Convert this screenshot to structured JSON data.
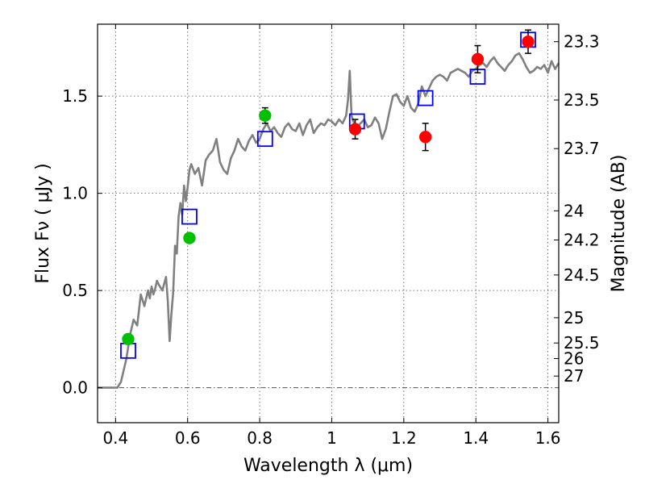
{
  "chart_data": {
    "type": "scatter",
    "title": "",
    "xlabel": "Wavelength  λ (μm)",
    "ylabel": "Flux  Fν  ( μJy )",
    "ylabel_right": "Magnitude (AB)",
    "xlim": [
      0.35,
      1.63
    ],
    "ylim": [
      -0.18,
      1.87
    ],
    "grid": true,
    "x_ticks": [
      {
        "value": 0.4,
        "label": "0.4"
      },
      {
        "value": 0.6,
        "label": "0.6"
      },
      {
        "value": 0.8,
        "label": "0.8"
      },
      {
        "value": 1.0,
        "label": "1"
      },
      {
        "value": 1.2,
        "label": "1.2"
      },
      {
        "value": 1.4,
        "label": "1.4"
      },
      {
        "value": 1.6,
        "label": "1.6"
      }
    ],
    "y_ticks": [
      {
        "value": 0.0,
        "label": "0.0"
      },
      {
        "value": 0.5,
        "label": "0.5"
      },
      {
        "value": 1.0,
        "label": "1.0"
      },
      {
        "value": 1.5,
        "label": "1.5"
      }
    ],
    "magnitude_ticks": [
      {
        "value": 1.78,
        "label": "23.3"
      },
      {
        "value": 1.48,
        "label": "23.5"
      },
      {
        "value": 1.23,
        "label": "23.7"
      },
      {
        "value": 0.91,
        "label": "24"
      },
      {
        "value": 0.76,
        "label": "24.2"
      },
      {
        "value": 0.58,
        "label": "24.5"
      },
      {
        "value": 0.36,
        "label": "25"
      },
      {
        "value": 0.23,
        "label": "25.5"
      },
      {
        "value": 0.15,
        "label": "26"
      },
      {
        "value": 0.06,
        "label": "27"
      }
    ],
    "series": [
      {
        "name": "model SED",
        "kind": "line",
        "color": "#808080",
        "x": [
          0.35,
          0.405,
          0.415,
          0.43,
          0.44,
          0.45,
          0.46,
          0.47,
          0.48,
          0.49,
          0.495,
          0.5,
          0.505,
          0.51,
          0.515,
          0.52,
          0.53,
          0.54,
          0.545,
          0.55,
          0.555,
          0.56,
          0.565,
          0.57,
          0.575,
          0.58,
          0.585,
          0.59,
          0.595,
          0.6,
          0.605,
          0.61,
          0.62,
          0.63,
          0.64,
          0.65,
          0.66,
          0.67,
          0.68,
          0.69,
          0.7,
          0.71,
          0.72,
          0.73,
          0.74,
          0.75,
          0.76,
          0.77,
          0.78,
          0.79,
          0.8,
          0.81,
          0.82,
          0.83,
          0.84,
          0.85,
          0.86,
          0.87,
          0.88,
          0.89,
          0.9,
          0.91,
          0.92,
          0.93,
          0.94,
          0.95,
          0.96,
          0.97,
          0.98,
          0.99,
          1.0,
          1.01,
          1.02,
          1.03,
          1.04,
          1.045,
          1.05,
          1.055,
          1.06,
          1.07,
          1.08,
          1.09,
          1.1,
          1.11,
          1.12,
          1.13,
          1.14,
          1.15,
          1.16,
          1.17,
          1.18,
          1.19,
          1.2,
          1.21,
          1.22,
          1.23,
          1.24,
          1.25,
          1.26,
          1.27,
          1.28,
          1.29,
          1.3,
          1.31,
          1.32,
          1.33,
          1.34,
          1.35,
          1.36,
          1.37,
          1.38,
          1.39,
          1.4,
          1.41,
          1.42,
          1.43,
          1.44,
          1.45,
          1.46,
          1.47,
          1.48,
          1.49,
          1.5,
          1.51,
          1.52,
          1.53,
          1.54,
          1.55,
          1.56,
          1.57,
          1.58,
          1.59,
          1.6,
          1.61,
          1.62,
          1.63
        ],
        "y": [
          0.0,
          0.0,
          0.03,
          0.15,
          0.27,
          0.35,
          0.32,
          0.48,
          0.42,
          0.5,
          0.46,
          0.52,
          0.48,
          0.51,
          0.55,
          0.53,
          0.5,
          0.57,
          0.45,
          0.24,
          0.38,
          0.49,
          0.73,
          0.69,
          0.88,
          0.95,
          0.89,
          1.04,
          0.96,
          1.03,
          1.12,
          1.15,
          1.1,
          1.13,
          1.04,
          1.17,
          1.2,
          1.22,
          1.28,
          1.16,
          1.12,
          1.1,
          1.18,
          1.22,
          1.28,
          1.24,
          1.22,
          1.27,
          1.3,
          1.26,
          1.28,
          1.33,
          1.36,
          1.32,
          1.34,
          1.31,
          1.29,
          1.34,
          1.36,
          1.33,
          1.32,
          1.36,
          1.3,
          1.35,
          1.38,
          1.31,
          1.34,
          1.36,
          1.35,
          1.38,
          1.37,
          1.35,
          1.38,
          1.36,
          1.4,
          1.48,
          1.63,
          1.4,
          1.37,
          1.34,
          1.36,
          1.38,
          1.34,
          1.35,
          1.39,
          1.36,
          1.28,
          1.33,
          1.42,
          1.5,
          1.51,
          1.47,
          1.45,
          1.5,
          1.44,
          1.42,
          1.46,
          1.55,
          1.5,
          1.54,
          1.58,
          1.6,
          1.61,
          1.6,
          1.58,
          1.62,
          1.63,
          1.64,
          1.63,
          1.62,
          1.6,
          1.63,
          1.64,
          1.66,
          1.67,
          1.65,
          1.68,
          1.7,
          1.67,
          1.65,
          1.63,
          1.66,
          1.68,
          1.71,
          1.72,
          1.69,
          1.65,
          1.62,
          1.63,
          1.65,
          1.64,
          1.66,
          1.62,
          1.68,
          1.64,
          1.67
        ]
      },
      {
        "name": "green photometry",
        "kind": "points",
        "marker": "circle",
        "color": "#00c000",
        "points": [
          {
            "x": 0.435,
            "y": 0.25,
            "err": 0.02
          },
          {
            "x": 0.605,
            "y": 0.77,
            "err": 0.02
          },
          {
            "x": 0.815,
            "y": 1.4,
            "err": 0.04
          }
        ]
      },
      {
        "name": "red photometry",
        "kind": "points",
        "marker": "circle",
        "color": "#ff0000",
        "points": [
          {
            "x": 1.065,
            "y": 1.33,
            "err": 0.05
          },
          {
            "x": 1.26,
            "y": 1.29,
            "err": 0.07
          },
          {
            "x": 1.405,
            "y": 1.69,
            "err": 0.07
          },
          {
            "x": 1.545,
            "y": 1.78,
            "err": 0.06
          }
        ]
      },
      {
        "name": "model photometry",
        "kind": "points",
        "marker": "square-open",
        "color": "#0000ff",
        "points": [
          {
            "x": 0.435,
            "y": 0.19
          },
          {
            "x": 0.605,
            "y": 0.88
          },
          {
            "x": 0.815,
            "y": 1.28
          },
          {
            "x": 1.07,
            "y": 1.37
          },
          {
            "x": 1.26,
            "y": 1.49
          },
          {
            "x": 1.405,
            "y": 1.6
          },
          {
            "x": 1.545,
            "y": 1.79
          }
        ]
      }
    ]
  }
}
